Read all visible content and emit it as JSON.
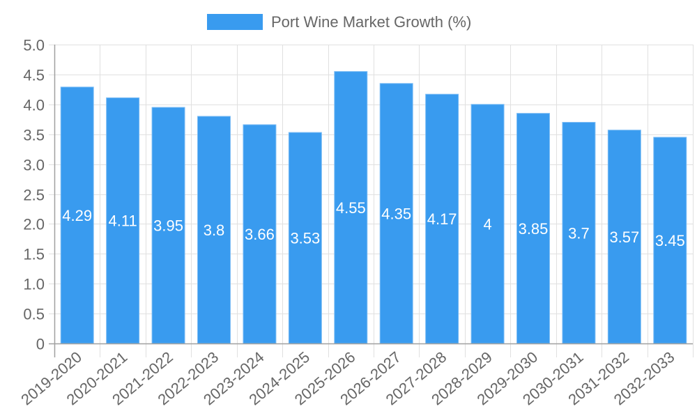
{
  "chart_data": {
    "type": "bar",
    "title": "",
    "legend": {
      "label": "Port Wine Market Growth (%)",
      "position": "top",
      "color": "#399BEF"
    },
    "categories": [
      "2019-2020",
      "2020-2021",
      "2021-2022",
      "2022-2023",
      "2023-2024",
      "2024-2025",
      "2025-2026",
      "2026-2027",
      "2027-2028",
      "2028-2029",
      "2029-2030",
      "2030-2031",
      "2031-2032",
      "2032-2033"
    ],
    "series": [
      {
        "name": "Port Wine Market Growth (%)",
        "values": [
          4.29,
          4.11,
          3.95,
          3.8,
          3.66,
          3.53,
          4.55,
          4.35,
          4.17,
          4,
          3.85,
          3.7,
          3.57,
          3.45
        ]
      }
    ],
    "data_labels": [
      "4.29",
      "4.11",
      "3.95",
      "3.8",
      "3.66",
      "3.53",
      "4.55",
      "4.35",
      "4.17",
      "4",
      "3.85",
      "3.7",
      "3.57",
      "3.45"
    ],
    "xlabel": "",
    "ylabel": "",
    "ylim": [
      0,
      5.0
    ],
    "y_ticks": [
      "0",
      "0.5",
      "1.0",
      "1.5",
      "2.0",
      "2.5",
      "3.0",
      "3.5",
      "4.0",
      "4.5",
      "5.0"
    ],
    "grid": true,
    "colors": {
      "bar": "#399BEF",
      "bar_border": "#7FBEF5",
      "grid": "#e0e0e0",
      "axis": "#a0a0a0",
      "text": "#666666"
    }
  }
}
